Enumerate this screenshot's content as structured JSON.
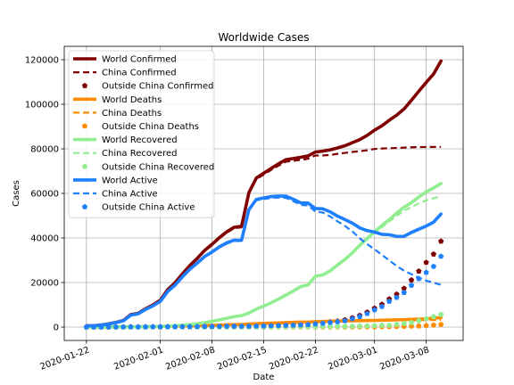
{
  "chart_data": {
    "type": "line",
    "title": "Worldwide Cases",
    "xlabel": "Date",
    "ylabel": "Cases",
    "x_start": "2020-01-22",
    "x_end": "2020-03-10",
    "xlim": [
      "2020-01-19",
      "2020-03-13"
    ],
    "ylim": [
      -6000,
      126000
    ],
    "x_ticks": [
      "2020-01-22",
      "2020-02-01",
      "2020-02-08",
      "2020-02-15",
      "2020-02-22",
      "2020-03-01",
      "2020-03-08"
    ],
    "y_ticks": [
      0,
      20000,
      40000,
      60000,
      80000,
      100000,
      120000
    ],
    "y_tick_labels": [
      "0",
      "20000",
      "40000",
      "60000",
      "80000",
      "100000",
      "120000"
    ],
    "grid": true,
    "legend_position": "top-left",
    "series": [
      {
        "name": "World Confirmed",
        "style": "solid",
        "color": "#800000",
        "values": [
          555,
          654,
          941,
          1434,
          2118,
          2927,
          5578,
          6166,
          8234,
          9927,
          12038,
          16787,
          19881,
          23892,
          27635,
          30817,
          34391,
          37120,
          40150,
          42762,
          44802,
          45221,
          60368,
          66885,
          69030,
          71224,
          73258,
          75136,
          75639,
          76197,
          76819,
          78572,
          78958,
          79561,
          80406,
          81388,
          82746,
          84112,
          86011,
          88369,
          90306,
          92840,
          95120,
          97886,
          101801,
          105847,
          109821,
          113590,
          119400
        ]
      },
      {
        "name": "China Confirmed",
        "style": "dashed",
        "color": "#800000",
        "values": [
          548,
          643,
          920,
          1406,
          2075,
          2877,
          5509,
          6087,
          8141,
          9802,
          11891,
          16630,
          19716,
          23707,
          27440,
          30587,
          34110,
          36814,
          39829,
          42354,
          44386,
          44759,
          59895,
          66358,
          68413,
          70513,
          72434,
          74211,
          74619,
          75077,
          75550,
          77001,
          77022,
          77241,
          77754,
          78166,
          78600,
          78928,
          79356,
          79932,
          80136,
          80261,
          80386,
          80537,
          80690,
          80770,
          80823,
          80860,
          80887
        ]
      },
      {
        "name": "Outside China Confirmed",
        "style": "markers",
        "color": "#800000",
        "values": [
          7,
          11,
          21,
          28,
          43,
          50,
          69,
          79,
          93,
          125,
          147,
          157,
          165,
          185,
          195,
          230,
          281,
          306,
          321,
          408,
          416,
          462,
          473,
          527,
          617,
          711,
          824,
          925,
          1020,
          1120,
          1269,
          1571,
          1936,
          2320,
          2652,
          3222,
          4146,
          5184,
          6655,
          8437,
          10170,
          12579,
          14734,
          17349,
          21111,
          25077,
          28998,
          32730,
          38513
        ]
      },
      {
        "name": "World Deaths",
        "style": "solid",
        "color": "#ff8c00",
        "values": [
          17,
          18,
          26,
          42,
          56,
          82,
          131,
          133,
          171,
          213,
          259,
          362,
          426,
          492,
          564,
          634,
          719,
          806,
          906,
          1013,
          1113,
          1118,
          1371,
          1523,
          1666,
          1770,
          1868,
          2007,
          2122,
          2247,
          2251,
          2458,
          2469,
          2629,
          2708,
          2770,
          2814,
          2872,
          2941,
          2996,
          3085,
          3160,
          3254,
          3348,
          3460,
          3558,
          3803,
          3996,
          4262
        ]
      },
      {
        "name": "China Deaths",
        "style": "dashed",
        "color": "#ff8c00",
        "values": [
          17,
          18,
          26,
          42,
          56,
          82,
          131,
          133,
          171,
          213,
          259,
          361,
          425,
          490,
          562,
          632,
          717,
          804,
          904,
          1011,
          1111,
          1116,
          1368,
          1520,
          1662,
          1765,
          1863,
          2002,
          2114,
          2236,
          2236,
          2441,
          2443,
          2593,
          2663,
          2715,
          2744,
          2788,
          2835,
          2870,
          2912,
          2945,
          2981,
          3013,
          3045,
          3073,
          3100,
          3123,
          3139
        ]
      },
      {
        "name": "Outside China Deaths",
        "style": "markers",
        "color": "#ff8c00",
        "values": [
          0,
          0,
          0,
          0,
          0,
          0,
          0,
          0,
          0,
          0,
          0,
          1,
          1,
          2,
          2,
          2,
          2,
          2,
          2,
          2,
          2,
          2,
          3,
          3,
          4,
          5,
          5,
          5,
          8,
          11,
          15,
          17,
          26,
          36,
          45,
          55,
          70,
          84,
          106,
          126,
          173,
          215,
          273,
          335,
          415,
          485,
          703,
          873,
          1123
        ]
      },
      {
        "name": "World Recovered",
        "style": "solid",
        "color": "#90ee90",
        "values": [
          28,
          30,
          36,
          39,
          52,
          61,
          107,
          126,
          143,
          222,
          284,
          472,
          623,
          852,
          1124,
          1487,
          2011,
          2616,
          3244,
          3946,
          4683,
          5150,
          6295,
          8058,
          9395,
          10865,
          12583,
          14352,
          16121,
          18177,
          18890,
          22886,
          23394,
          25227,
          27905,
          30384,
          33277,
          36711,
          39782,
          42716,
          45602,
          48228,
          51170,
          53796,
          55865,
          58358,
          60694,
          62494,
          64404
        ]
      },
      {
        "name": "China Recovered",
        "style": "dashed",
        "color": "#90ee90",
        "values": [
          28,
          30,
          36,
          39,
          49,
          58,
          101,
          120,
          135,
          214,
          275,
          463,
          614,
          843,
          1115,
          1477,
          1999,
          2596,
          3219,
          3918,
          4636,
          5082,
          6217,
          7977,
          9298,
          10755,
          12462,
          14206,
          15962,
          18014,
          18704,
          22699,
          23170,
          24990,
          27650,
          30053,
          32898,
          36291,
          39279,
          42118,
          44810,
          47404,
          49955,
          52240,
          53888,
          55478,
          56893,
          57837,
          58767
        ]
      },
      {
        "name": "Outside China Recovered",
        "style": "markers",
        "color": "#90ee90",
        "values": [
          0,
          0,
          0,
          0,
          3,
          3,
          6,
          6,
          8,
          8,
          9,
          9,
          9,
          9,
          9,
          10,
          12,
          20,
          25,
          28,
          47,
          68,
          78,
          81,
          97,
          110,
          121,
          146,
          159,
          163,
          186,
          187,
          224,
          237,
          255,
          331,
          379,
          420,
          503,
          598,
          792,
          824,
          1215,
          1556,
          1977,
          2880,
          3801,
          4657,
          5637
        ]
      },
      {
        "name": "World Active",
        "style": "solid",
        "color": "#1e7fff",
        "values": [
          510,
          606,
          879,
          1353,
          2010,
          2784,
          5340,
          5907,
          7920,
          9492,
          11495,
          15953,
          18832,
          22548,
          25947,
          28696,
          31661,
          33698,
          36000,
          37803,
          39006,
          38953,
          52702,
          57304,
          57969,
          58584,
          58807,
          58777,
          57396,
          55773,
          55678,
          53228,
          53095,
          51705,
          49793,
          48234,
          46655,
          44529,
          43288,
          42657,
          41619,
          41452,
          40696,
          40742,
          42476,
          43931,
          45324,
          47100,
          50734
        ]
      },
      {
        "name": "China Active",
        "style": "dashed",
        "color": "#1e7fff",
        "values": [
          503,
          595,
          858,
          1325,
          1970,
          2737,
          5277,
          5834,
          7835,
          9375,
          11357,
          15806,
          18677,
          22374,
          25763,
          28478,
          31394,
          33414,
          35706,
          37425,
          38639,
          38561,
          52310,
          56861,
          57453,
          57993,
          58109,
          58003,
          56543,
          54827,
          54610,
          51861,
          51409,
          49658,
          47441,
          45398,
          42958,
          39849,
          37242,
          34944,
          32414,
          29912,
          27450,
          25284,
          23757,
          22219,
          20830,
          19900,
          18981
        ]
      },
      {
        "name": "Outside China Active",
        "style": "markers",
        "color": "#1e7fff",
        "values": [
          7,
          11,
          21,
          28,
          40,
          47,
          63,
          73,
          85,
          117,
          138,
          147,
          155,
          174,
          184,
          218,
          267,
          284,
          294,
          378,
          367,
          392,
          392,
          443,
          516,
          596,
          698,
          774,
          853,
          946,
          1068,
          1367,
          1686,
          2047,
          2352,
          2836,
          3697,
          4680,
          6046,
          7713,
          9205,
          11540,
          13246,
          15458,
          18719,
          21712,
          24494,
          27200,
          31753
        ]
      }
    ]
  }
}
